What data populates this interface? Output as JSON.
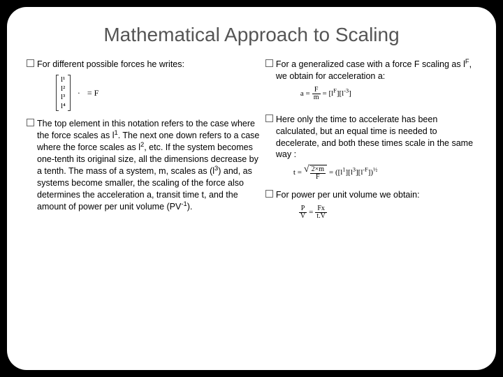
{
  "title": "Mathematical Approach to Scaling",
  "left": {
    "b1": "For different possible forces he writes:",
    "matrix_items": [
      "l¹",
      "l²",
      "l³",
      "l⁴"
    ],
    "eq_rhs": "= F",
    "b2_html": "The top element in this notation refers to the case where the force scales as l<sup>1</sup>. The next one down refers to a case where the force scales as l<sup>2</sup>, etc. If the system becomes one-tenth its original size, all the dimensions decrease by a tenth. The mass of a system, m, scales as (l<sup>3</sup>) and, as systems become smaller, the scaling of the force also determines the acceleration a, transit time t, and the amount of power per unit volume (PV<sup>-1</sup>)."
  },
  "right": {
    "b1_html": "For a generalized case with a force F scaling as l<sup>F</sup>, we obtain for acceleration a:",
    "eq1_lhs": "a =",
    "eq1_num": "F",
    "eq1_den": "m",
    "eq1_rhs": "= [l<sup>F</sup>][l<sup>-3</sup>]",
    "b2": " Here only the time to accelerate has been calculated, but an equal time is needed to decelerate, and both these times scale in the same way :",
    "eq2_lhs": "t =",
    "eq2_num": "2×m",
    "eq2_den": "F",
    "eq2_rhs": "= ([l<sup>1</sup>][l<sup>3</sup>][l<sup>-F</sup>])<sup>½</sup>",
    "b3": "For power per unit volume we obtain:",
    "eq3_num": "P",
    "eq3_den": "V",
    "eq3_mid": "=",
    "eq3_num2": "Fx",
    "eq3_den2": "t.V"
  },
  "colors": {
    "bg_outer": "#000000",
    "bg_slide": "#ffffff",
    "title_color": "#555555",
    "bullet_border": "#666666"
  }
}
